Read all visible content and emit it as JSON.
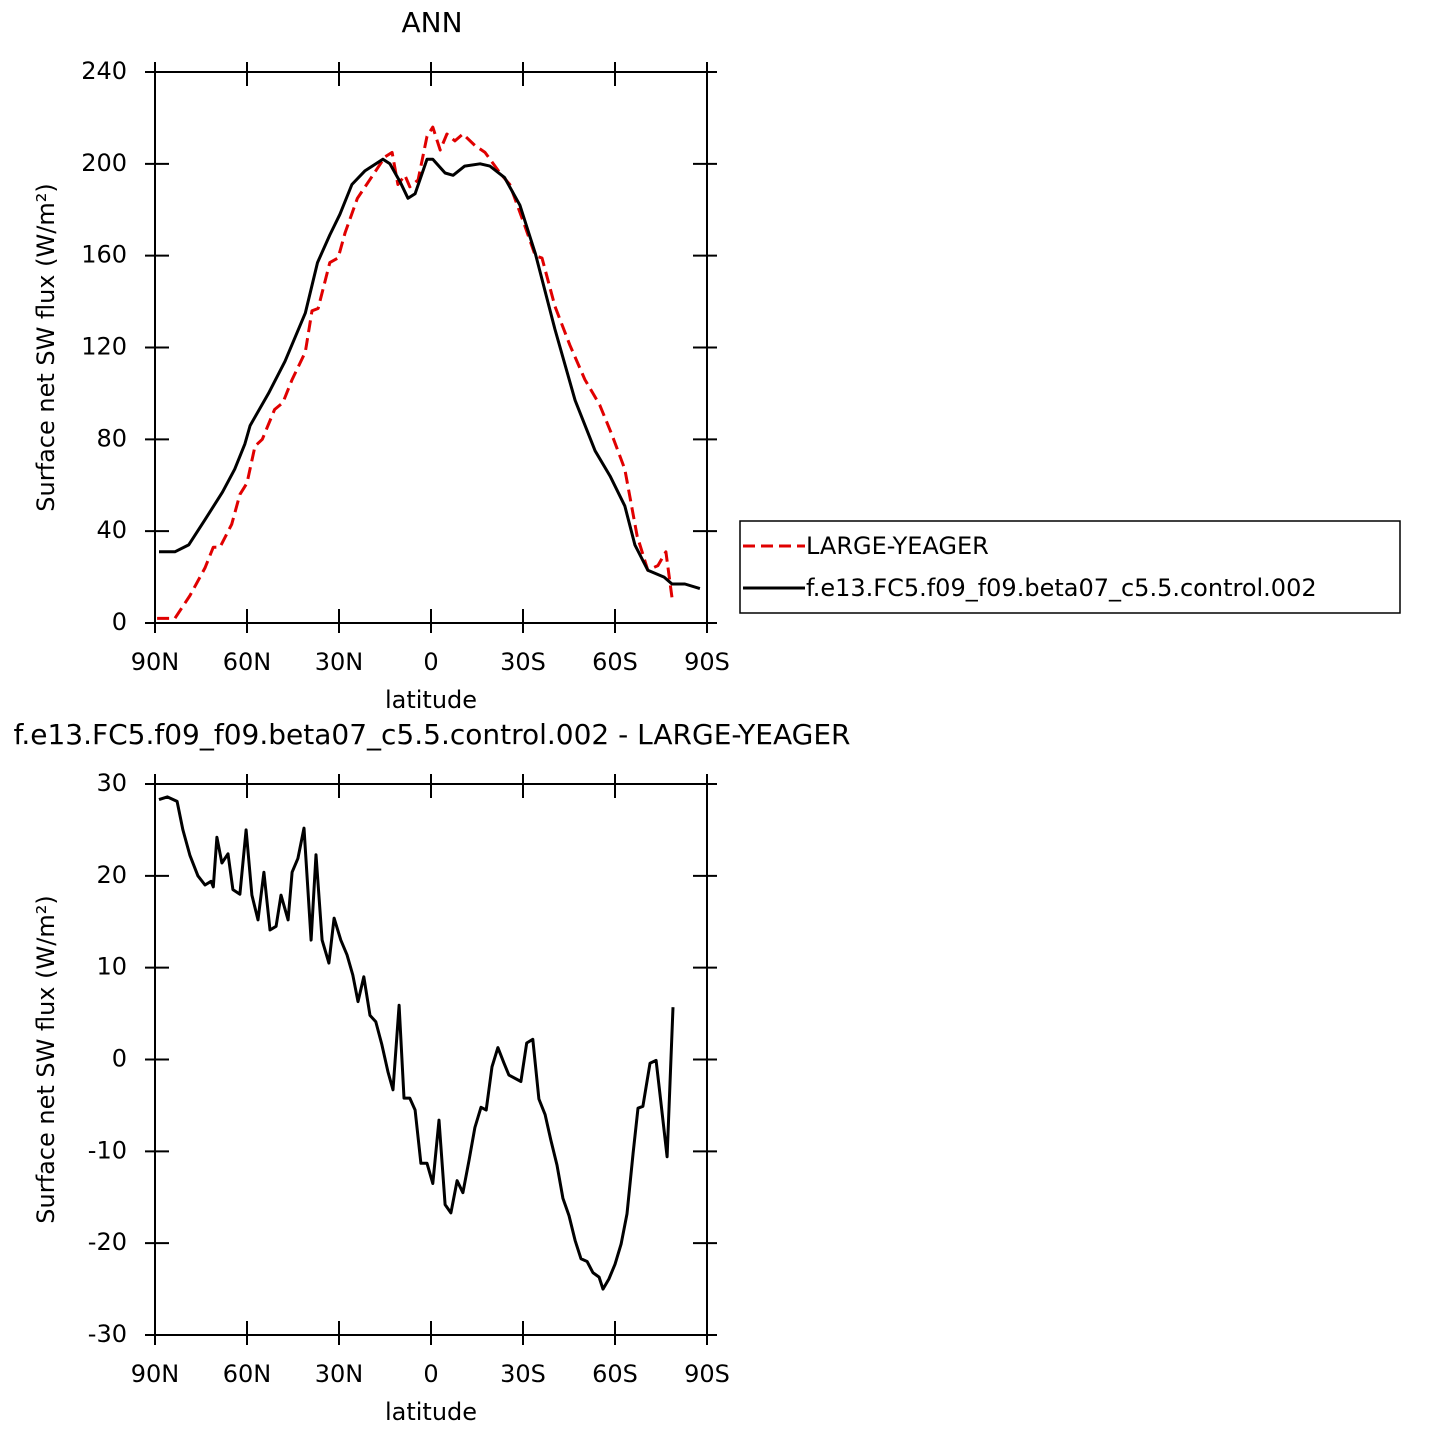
{
  "chart_data": [
    {
      "type": "line",
      "title": "ANN",
      "xlabel": "latitude",
      "ylabel": "Surface net SW flux (W/m²)",
      "xlim": [
        90,
        -90
      ],
      "xticks": [
        {
          "value": 90,
          "label": "90N"
        },
        {
          "value": 60,
          "label": "60N"
        },
        {
          "value": 30,
          "label": "30N"
        },
        0,
        {
          "value": -30,
          "label": "30S"
        },
        {
          "value": -60,
          "label": "60S"
        },
        {
          "value": -90,
          "label": "90S"
        }
      ],
      "ylim": [
        0,
        240
      ],
      "yticks": [
        0,
        40,
        80,
        120,
        160,
        200,
        240
      ],
      "legend": "right",
      "series": [
        {
          "name": "LARGE-YEAGER",
          "color": "#e00000",
          "line_style": "dashed",
          "x": [
            89.3,
            83.5,
            78.6,
            73.7,
            71,
            68.8,
            65,
            62.3,
            60,
            57.4,
            55,
            51,
            48.3,
            45.3,
            41,
            38.8,
            36.8,
            33,
            30.3,
            28,
            24,
            20,
            15,
            12.7,
            10.8,
            8.5,
            6.9,
            4.2,
            1.3,
            -0.6,
            -3,
            -5.2,
            -7.8,
            -10.4,
            -14.3,
            -17.6,
            -22.5,
            -25.7,
            -30.6,
            -34,
            -36.2,
            -40.4,
            -45.3,
            -50.2,
            -55,
            -59,
            -63.2,
            -67.2,
            -70.7,
            -74,
            -76.6,
            -78.6
          ],
          "values": [
            2,
            2,
            12,
            24,
            33,
            33,
            43,
            56,
            61,
            77,
            80,
            93,
            96,
            106,
            118,
            136,
            137,
            157,
            159,
            170,
            185,
            193,
            203,
            205,
            191,
            195,
            190,
            193,
            212,
            216,
            206,
            213,
            210,
            213,
            208,
            205,
            196,
            191,
            173,
            160,
            159,
            138,
            121,
            106,
            95,
            82,
            67,
            38,
            23,
            25,
            31,
            11
          ]
        },
        {
          "name": "f.e13.FC5.f09_f09.beta07_c5.5.control.002",
          "color": "#000000",
          "line_style": "solid",
          "x": [
            88.7,
            83.5,
            79,
            73.7,
            68,
            64,
            60.7,
            59,
            53,
            47.6,
            41,
            37,
            33,
            29.7,
            25.8,
            21.5,
            15.7,
            13.4,
            10,
            7.5,
            5.2,
            1.3,
            -0.6,
            -4.6,
            -7.2,
            -11,
            -16,
            -19.2,
            -24,
            -29,
            -34,
            -40.4,
            -47,
            -53.5,
            -58.4,
            -63.2,
            -66.5,
            -70.7,
            -76,
            -78.6,
            -82.8,
            -87.7
          ],
          "values": [
            31,
            31,
            34,
            45,
            57,
            67,
            78,
            86,
            100,
            114,
            135,
            157,
            169,
            178,
            191,
            197,
            202,
            200,
            192,
            185,
            187,
            202,
            202,
            196,
            195,
            199,
            200,
            199,
            194,
            182,
            161,
            128,
            97,
            75,
            64,
            51,
            34,
            23,
            20,
            17,
            17,
            15
          ]
        }
      ]
    },
    {
      "type": "line",
      "title": "f.e13.FC5.f09_f09.beta07_c5.5.control.002 - LARGE-YEAGER",
      "xlabel": "latitude",
      "ylabel": "Surface net SW flux (W/m²)",
      "xlim": [
        90,
        -90
      ],
      "xticks": [
        {
          "value": 90,
          "label": "90N"
        },
        {
          "value": 60,
          "label": "60N"
        },
        {
          "value": 30,
          "label": "30N"
        },
        0,
        {
          "value": -30,
          "label": "30S"
        },
        {
          "value": -60,
          "label": "60S"
        },
        {
          "value": -90,
          "label": "90S"
        }
      ],
      "ylim": [
        -30,
        30
      ],
      "yticks": [
        -30,
        -20,
        -10,
        0,
        10,
        20,
        30
      ],
      "series": [
        {
          "color": "#000000",
          "line_style": "solid",
          "x": [
            88.7,
            86,
            82.8,
            80.9,
            78.6,
            76,
            73.7,
            71.7,
            71,
            69.8,
            68.2,
            66.2,
            64.6,
            62.3,
            60.3,
            58.4,
            56.4,
            54.5,
            52.5,
            50.5,
            48.9,
            46.6,
            45.3,
            43.4,
            41.4,
            39.1,
            37.5,
            35.5,
            33.3,
            31.6,
            29.4,
            27.4,
            25.5,
            23.8,
            21.9,
            19.9,
            18,
            16,
            14,
            12.4,
            10.4,
            8.8,
            6.9,
            5.2,
            3.3,
            1.3,
            -0.6,
            -2.6,
            -4.6,
            -6.5,
            -8.5,
            -10.4,
            -12.4,
            -14.3,
            -16.3,
            -18,
            -19.9,
            -21.8,
            -23.8,
            -25.4,
            -29.3,
            -31.2,
            -33.2,
            -35.2,
            -37.2,
            -39.1,
            -41.1,
            -43,
            -45,
            -47,
            -48.9,
            -50.9,
            -52.8,
            -54.8,
            -56.1,
            -58,
            -60,
            -62,
            -63.9,
            -65.9,
            -67.5,
            -69.1,
            -71.4,
            -73.4,
            -74.7,
            -77,
            -78.9
          ],
          "values": [
            28.3,
            28.6,
            28.1,
            25,
            22.2,
            20,
            19,
            19.4,
            18.8,
            24.2,
            21.4,
            22.4,
            18.5,
            18,
            25,
            17.9,
            15.2,
            20.4,
            14.1,
            14.5,
            17.9,
            15.2,
            20.4,
            21.9,
            25.2,
            13,
            22.3,
            13,
            10.5,
            15.4,
            13,
            11.4,
            9.2,
            6.3,
            9,
            4.8,
            4.1,
            1.6,
            -1.4,
            -3.3,
            5.9,
            -4.2,
            -4.2,
            -5.5,
            -11.3,
            -11.3,
            -13.5,
            -6.6,
            -15.8,
            -16.7,
            -13.2,
            -14.5,
            -11,
            -7.4,
            -5.2,
            -5.5,
            -0.8,
            1.3,
            -0.4,
            -1.7,
            -2.4,
            1.8,
            2.2,
            -4.3,
            -6,
            -8.8,
            -11.5,
            -15.1,
            -17,
            -19.7,
            -21.7,
            -22,
            -23.2,
            -23.7,
            -25,
            -23.9,
            -22.3,
            -20.1,
            -16.8,
            -10.2,
            -5.3,
            -5.1,
            -0.4,
            -0.1,
            -3.9,
            -10.6,
            5.7
          ]
        }
      ]
    }
  ]
}
